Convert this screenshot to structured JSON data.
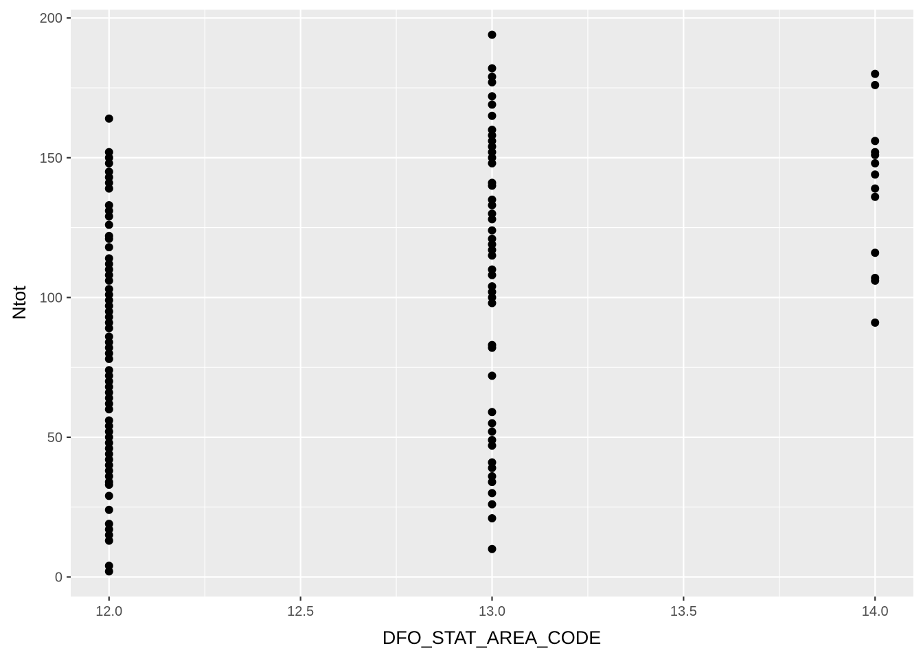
{
  "chart_data": {
    "type": "scatter",
    "title": "",
    "xlabel": "DFO_STAT_AREA_CODE",
    "ylabel": "Ntot",
    "xlim": [
      11.9,
      14.1
    ],
    "ylim": [
      -7,
      203
    ],
    "x_ticks": [
      12.0,
      12.5,
      13.0,
      13.5,
      14.0
    ],
    "x_tick_labels": [
      "12.0",
      "12.5",
      "13.0",
      "13.5",
      "14.0"
    ],
    "y_ticks": [
      0,
      50,
      100,
      150,
      200
    ],
    "y_tick_labels": [
      "0",
      "50",
      "100",
      "150",
      "200"
    ],
    "grid": true,
    "legend": "none",
    "point_color": "#000000",
    "panel_background": "#ebebeb",
    "series": [
      {
        "x": 12.0,
        "values": [
          164,
          152,
          150,
          148,
          145,
          143,
          141,
          139,
          133,
          131,
          129,
          126,
          122,
          121,
          118,
          114,
          112,
          110,
          108,
          106,
          103,
          101,
          99,
          97,
          95,
          93,
          91,
          89,
          86,
          84,
          82,
          80,
          78,
          74,
          72,
          70,
          68,
          66,
          64,
          62,
          60,
          56,
          54,
          52,
          50,
          48,
          46,
          44,
          42,
          40,
          38,
          36,
          34,
          33,
          29,
          24,
          19,
          17,
          15,
          13,
          4,
          2
        ]
      },
      {
        "x": 13.0,
        "values": [
          194,
          182,
          179,
          177,
          172,
          169,
          165,
          160,
          158,
          156,
          154,
          152,
          150,
          148,
          141,
          140,
          135,
          133,
          130,
          128,
          124,
          121,
          119,
          117,
          115,
          110,
          108,
          104,
          102,
          100,
          98,
          83,
          82,
          72,
          59,
          55,
          52,
          49,
          47,
          41,
          39,
          36,
          34,
          30,
          26,
          21,
          10
        ]
      },
      {
        "x": 14.0,
        "values": [
          180,
          176,
          156,
          152,
          151,
          148,
          144,
          139,
          136,
          116,
          107,
          106,
          91
        ]
      }
    ]
  }
}
